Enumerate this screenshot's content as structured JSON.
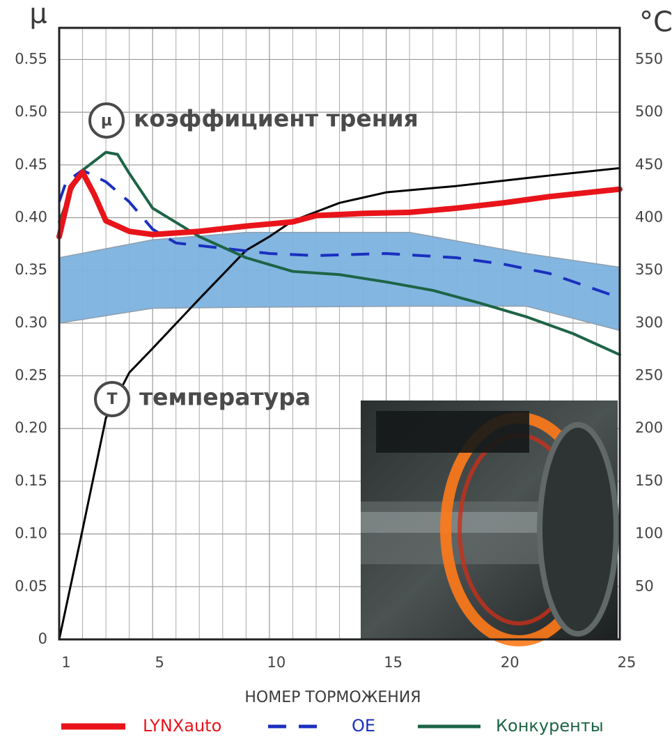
{
  "chart_data": {
    "type": "line",
    "y_label": "μ",
    "y2_label": "°C",
    "x_label": "НОМЕР ТОРМОЖЕНИЯ",
    "annotations": [
      {
        "symbol": "μ",
        "text": "коэффициент трения"
      },
      {
        "symbol": "Т",
        "text": "температура"
      }
    ],
    "xlim": [
      1,
      25
    ],
    "xticks": [
      1,
      5,
      10,
      15,
      20,
      25
    ],
    "minor_xticks": [
      2,
      3,
      4,
      6,
      7,
      8,
      9,
      11,
      12,
      13,
      14,
      16,
      17,
      18,
      19,
      21,
      22,
      23,
      24
    ],
    "ylim": [
      0,
      0.58
    ],
    "yticks": [
      0,
      0.05,
      {
        "value": 0.1,
        "label": "0.10"
      },
      0.15,
      {
        "value": 0.2,
        "label": "0.20"
      },
      0.25,
      {
        "value": 0.3,
        "label": "0.30"
      },
      0.35,
      {
        "value": 0.4,
        "label": "0.40"
      },
      0.45,
      {
        "value": 0.5,
        "label": "0.50"
      },
      0.55
    ],
    "y2lim": [
      0,
      580
    ],
    "y2ticks": [
      50,
      100,
      150,
      200,
      250,
      300,
      350,
      400,
      450,
      500,
      550
    ],
    "grid": true,
    "band": {
      "color": "#7db3e0",
      "x": [
        1,
        5,
        9,
        16,
        21,
        25
      ],
      "upper": [
        0.362,
        0.379,
        0.386,
        0.386,
        0.366,
        0.353
      ],
      "lower": [
        0.3,
        0.314,
        0.315,
        0.316,
        0.316,
        0.293
      ]
    },
    "series": [
      {
        "name": "LYNXauto",
        "color": "#e8141a",
        "width": 8,
        "x": [
          1,
          1.5,
          2,
          2.5,
          3,
          4,
          5,
          7,
          9,
          11,
          12,
          14,
          16,
          18,
          20,
          22,
          25
        ],
        "values": [
          0.382,
          0.429,
          0.443,
          0.422,
          0.397,
          0.387,
          0.384,
          0.387,
          0.392,
          0.396,
          0.402,
          0.404,
          0.405,
          0.409,
          0.414,
          0.42,
          0.427
        ]
      },
      {
        "name": "OE",
        "color": "#1a2fbf",
        "width": 4,
        "dashed": true,
        "x": [
          1,
          1.3,
          2,
          3,
          4,
          5,
          6,
          8,
          10,
          12,
          15,
          18,
          20,
          22,
          25
        ],
        "values": [
          0.415,
          0.434,
          0.445,
          0.434,
          0.415,
          0.389,
          0.376,
          0.371,
          0.366,
          0.364,
          0.366,
          0.362,
          0.356,
          0.347,
          0.324
        ]
      },
      {
        "name": "Конкуренты",
        "color": "#1d6446",
        "width": 4,
        "x": [
          1,
          1.5,
          2,
          3,
          3.5,
          4,
          5,
          7,
          9,
          11,
          13,
          15,
          17,
          19,
          21,
          23,
          25
        ],
        "values": [
          0.396,
          0.425,
          0.445,
          0.462,
          0.46,
          0.442,
          0.409,
          0.382,
          0.362,
          0.349,
          0.346,
          0.339,
          0.331,
          0.319,
          0.306,
          0.29,
          0.27
        ]
      },
      {
        "color": "#000000",
        "width": 3,
        "axis": "y2",
        "x": [
          1,
          2,
          3,
          4,
          5,
          7,
          9,
          10,
          11,
          13,
          15,
          18,
          20,
          22,
          25
        ],
        "values": [
          0,
          104,
          210,
          253,
          276,
          323,
          369,
          382,
          397,
          414,
          424,
          430,
          435,
          440,
          447
        ]
      }
    ]
  }
}
